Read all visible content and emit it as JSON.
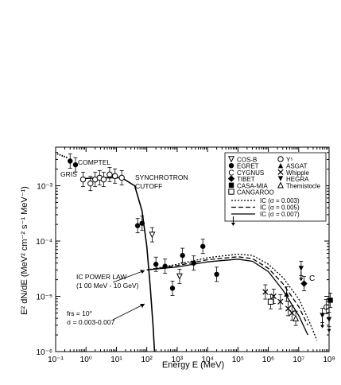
{
  "chart_data": {
    "type": "scatter",
    "title": "",
    "xlabel": "Energy E (MeV)",
    "ylabel": "E² dN/dE (MeV² cm⁻² s⁻¹ MeV⁻¹)",
    "xscale": "log",
    "yscale": "log",
    "xlim": [
      0.1,
      100000000
    ],
    "ylim": [
      1e-06,
      0.005
    ],
    "grid": false,
    "legend_position": "top-right",
    "xtick_labels": [
      "10⁻¹",
      "10⁰",
      "10¹",
      "10²",
      "10³",
      "10⁴",
      "10⁵",
      "10⁶",
      "10⁷",
      "10⁸"
    ],
    "ytick_labels": [
      "10⁻⁶",
      "10⁻⁵",
      "10⁻⁴",
      "10⁻³"
    ],
    "annotations": {
      "comptel": "COMPTEL",
      "gris": "GRIS",
      "sync_1": "SYNCHROTRON",
      "sync_2": "CUTOFF",
      "icpl_1": "IC POWER LAW",
      "icpl_2": "(1 00 MeV - 10 GeV)",
      "frs_1": "frs = 10°",
      "frs_2": "σ = 0.003-0.007",
      "c_label": "C"
    },
    "legend": {
      "symbols": [
        {
          "glyph": "▽",
          "label": "COS-B"
        },
        {
          "glyph": "●",
          "label": "EGRET"
        },
        {
          "glyph": "C",
          "label": "CYGNUS"
        },
        {
          "glyph": "◆",
          "label": "TIBET"
        },
        {
          "glyph": "■",
          "label": "CASA-MIA"
        },
        {
          "glyph": "□",
          "label": "CANGAROO"
        },
        {
          "glyph": "○",
          "label": "Y⁵"
        },
        {
          "glyph": "▲",
          "label": "ASGAT"
        },
        {
          "glyph": "×",
          "label": "Whipple"
        },
        {
          "glyph": "▼",
          "label": "HEGRA"
        },
        {
          "glyph": "△",
          "label": "Themistocle"
        }
      ],
      "lines": [
        {
          "style": "dotted",
          "label": "IC (σ = 0.003)"
        },
        {
          "style": "dashed",
          "label": "IC (σ = 0.005)"
        },
        {
          "style": "solid",
          "label": "IC (σ = 0.007)"
        }
      ]
    },
    "series": [
      {
        "marker": "filled-circle",
        "points": [
          [
            0.3,
            0.0028
          ],
          [
            0.45,
            0.0024
          ],
          [
            50,
            0.00019
          ],
          [
            70,
            0.00021
          ],
          [
            200,
            3.8e-05
          ],
          [
            400,
            3.5e-05
          ],
          [
            700,
            1.4e-05
          ],
          [
            1500,
            5.5e-05
          ],
          [
            3500,
            4e-05
          ],
          [
            7000,
            8e-05
          ],
          [
            20000,
            2.5e-05
          ],
          [
            70000,
            0.00032
          ]
        ]
      },
      {
        "marker": "open-circle",
        "points": [
          [
            0.8,
            0.0013
          ],
          [
            1.4,
            0.0011
          ],
          [
            2,
            0.0013
          ],
          [
            2.8,
            0.0014
          ],
          [
            3.8,
            0.0013
          ],
          [
            6,
            0.0016
          ],
          [
            9,
            0.0015
          ],
          [
            15,
            0.0014
          ]
        ]
      },
      {
        "marker": "open-triangle-down",
        "points": [
          [
            150,
            0.00013
          ],
          [
            1200,
            2.3e-05
          ]
        ]
      },
      {
        "marker": "filled-triangle-down",
        "points": [
          [
            12000000,
            3.2e-05
          ],
          [
            60000000,
            4.5e-06
          ],
          [
            100000000,
            3.8e-06
          ]
        ]
      },
      {
        "marker": "filled-diamond",
        "points": [
          [
            15000000,
            1.7e-05
          ]
        ]
      },
      {
        "marker": "filled-square",
        "points": [
          [
            110000000,
            8.5e-06
          ]
        ]
      },
      {
        "marker": "filled-triangle-up",
        "points": [
          [
            4000000,
            1.1e-05
          ]
        ]
      },
      {
        "marker": "cross",
        "points": [
          [
            800000,
            1.2e-05
          ],
          [
            1500000,
            1e-05
          ],
          [
            2500000,
            8e-06
          ],
          [
            4500000,
            6e-06
          ],
          [
            6000000,
            5e-06
          ]
        ]
      },
      {
        "marker": "open-triangle-up",
        "points": [
          [
            8000000,
            4e-06
          ]
        ]
      },
      {
        "marker": "open-square",
        "points": [
          [
            1200000,
            8e-06
          ]
        ]
      },
      {
        "marker": "C",
        "points": [
          [
            80000000,
            6.5e-06
          ]
        ]
      }
    ],
    "curves": [
      {
        "label": "SYNCHROTRON CUTOFF",
        "style": "solid",
        "points": [
          [
            0.8,
            0.00135
          ],
          [
            3,
            0.0014
          ],
          [
            15,
            0.0014
          ],
          [
            40,
            0.001
          ],
          [
            70,
            0.00035
          ],
          [
            100,
            8e-05
          ],
          [
            130,
            1.5e-05
          ],
          [
            160,
            3e-06
          ],
          [
            180,
            1e-06
          ]
        ]
      },
      {
        "label": "IC (σ = 0.003)",
        "style": "dotted",
        "points": [
          [
            100,
            3e-05
          ],
          [
            1000,
            3.8e-05
          ],
          [
            10000,
            5e-05
          ],
          [
            100000,
            5.8e-05
          ],
          [
            300000,
            5.5e-05
          ],
          [
            1000000,
            3.8e-05
          ],
          [
            3000000,
            2.2e-05
          ],
          [
            10000000,
            9e-06
          ],
          [
            20000000,
            4e-06
          ],
          [
            40000000,
            1.6e-06
          ]
        ]
      },
      {
        "label": "IC (σ = 0.005)",
        "style": "dashed",
        "points": [
          [
            100,
            3e-05
          ],
          [
            1000,
            3.6e-05
          ],
          [
            10000,
            4.6e-05
          ],
          [
            100000,
            5.2e-05
          ],
          [
            300000,
            4.8e-05
          ],
          [
            1000000,
            3.2e-05
          ],
          [
            3000000,
            1.7e-05
          ],
          [
            10000000,
            6.5e-06
          ],
          [
            20000000,
            3e-06
          ]
        ]
      },
      {
        "label": "IC (σ = 0.007)",
        "style": "solid",
        "points": [
          [
            100,
            3e-05
          ],
          [
            1000,
            3.4e-05
          ],
          [
            10000,
            4.2e-05
          ],
          [
            100000,
            4.7e-05
          ],
          [
            300000,
            4.3e-05
          ],
          [
            1000000,
            2.8e-05
          ],
          [
            3000000,
            1.3e-05
          ],
          [
            10000000,
            4.5e-06
          ],
          [
            20000000,
            2e-06
          ]
        ]
      }
    ]
  }
}
